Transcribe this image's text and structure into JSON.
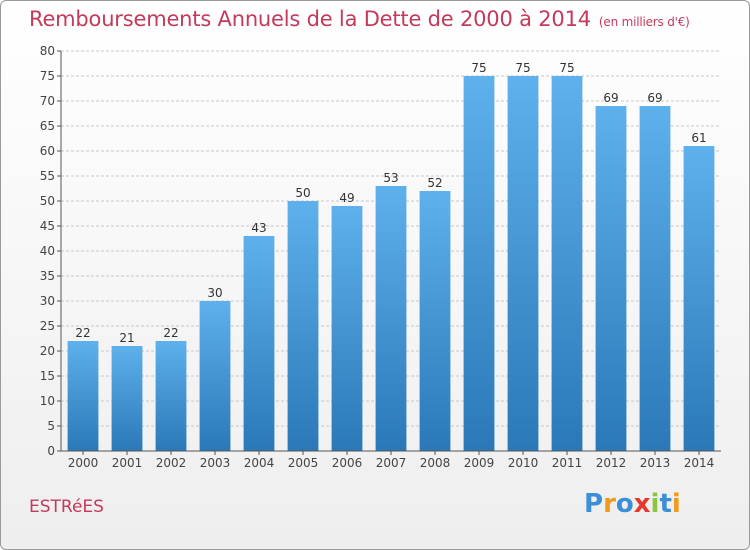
{
  "title": "Remboursements Annuels de la Dette de 2000 à 2014",
  "unit": "(en milliers d'€)",
  "town": "ESTRéES",
  "logo": {
    "text": "Proxiti",
    "letters": [
      {
        "ch": "P",
        "color": "#3a8fd6"
      },
      {
        "ch": "r",
        "color": "#f29a1c"
      },
      {
        "ch": "o",
        "color": "#3a8fd6"
      },
      {
        "ch": "x",
        "color": "#e8372c"
      },
      {
        "ch": "i",
        "color": "#8cc63f"
      },
      {
        "ch": "t",
        "color": "#3a8fd6"
      },
      {
        "ch": "i",
        "color": "#f29a1c"
      }
    ]
  },
  "colors": {
    "title": "#c43a5b",
    "bar_top": "#5eb1ec",
    "bar_bottom": "#2a78b8",
    "grid": "#c8c8c8",
    "axis": "#555555"
  },
  "chart_data": {
    "type": "bar",
    "title": "Remboursements Annuels de la Dette de 2000 à 2014",
    "xlabel": "",
    "ylabel": "en milliers d'€",
    "ylim": [
      0,
      80
    ],
    "yticks": [
      0,
      5,
      10,
      15,
      20,
      25,
      30,
      35,
      40,
      45,
      50,
      55,
      60,
      65,
      70,
      75,
      80
    ],
    "grid": true,
    "categories": [
      "2000",
      "2001",
      "2002",
      "2003",
      "2004",
      "2005",
      "2006",
      "2007",
      "2008",
      "2009",
      "2010",
      "2011",
      "2012",
      "2013",
      "2014"
    ],
    "values": [
      22,
      21,
      22,
      30,
      43,
      50,
      49,
      53,
      52,
      75,
      75,
      75,
      69,
      69,
      61
    ]
  }
}
